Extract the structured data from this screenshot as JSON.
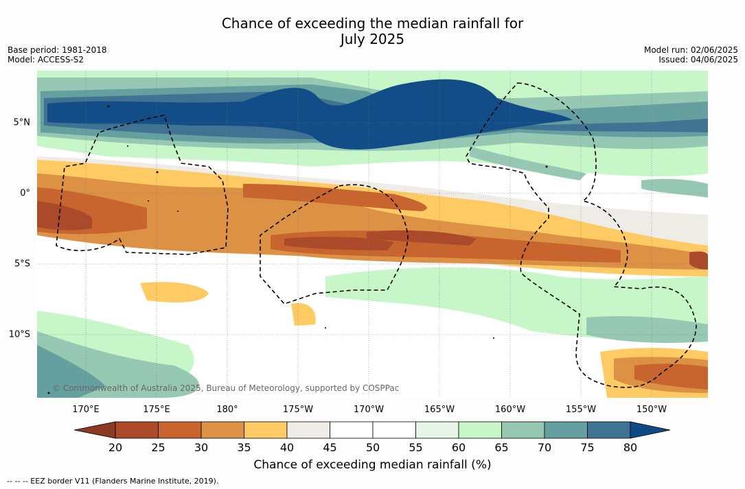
{
  "title_line1": "Chance of exceeding the median rainfall for",
  "title_line2": "July 2025",
  "left_meta": {
    "base_period": "Base period: 1981-2018",
    "model": "Model: ACCESS-S2"
  },
  "right_meta": {
    "model_run": "Model run: 02/06/2025",
    "issued": "Issued: 04/06/2025"
  },
  "map": {
    "lon_labels": [
      "170°E",
      "175°E",
      "180°",
      "175°W",
      "170°W",
      "165°W",
      "160°W",
      "155°W",
      "150°W"
    ],
    "lat_labels": [
      "5°N",
      "0°",
      "5°S",
      "10°S"
    ],
    "credit": "© Commonwealth of Australia 2025, Bureau of Meteorology, supported by COSPPac",
    "ocean_color": "#ffffff"
  },
  "colorbar": {
    "ticks": [
      "20",
      "25",
      "30",
      "35",
      "40",
      "45",
      "50",
      "55",
      "60",
      "65",
      "70",
      "75",
      "80"
    ],
    "colors": [
      "#ab4a2a",
      "#c8652f",
      "#dd9145",
      "#fdca63",
      "#efebe6",
      "#ffffff",
      "#ffffff",
      "#e7f4e8",
      "#c7f6c8",
      "#96c8b3",
      "#659f9f",
      "#3f7293",
      "#124d87"
    ],
    "under_color": "#8c3a22",
    "over_color": "#0f4a85",
    "label": "Chance of exceeding median rainfall (%)"
  },
  "footnote": "--  --  -- EEZ border V11 (Flanders Marine Institute, 2019)."
}
